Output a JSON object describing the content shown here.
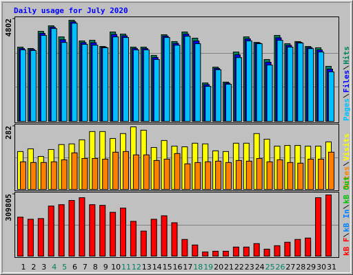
{
  "chart_data": [
    {
      "type": "bar",
      "title": "Daily usage for July 2020",
      "series": [
        {
          "name": "Hits",
          "color": "#00805c",
          "values": [
            3480,
            3415,
            4220,
            4480,
            3960,
            4740,
            3770,
            3800,
            3510,
            4190,
            4090,
            3480,
            3480,
            3090,
            4060,
            3740,
            4190,
            3900,
            1800,
            2540,
            1840,
            3250,
            3960,
            3700,
            2900,
            4030,
            3640,
            3740,
            3510,
            3450,
            2580
          ]
        },
        {
          "name": "Files",
          "color": "#0000ff",
          "values": [
            3415,
            3370,
            4125,
            4415,
            3830,
            4670,
            3690,
            3685,
            3480,
            4075,
            4010,
            3415,
            3415,
            2995,
            3995,
            3655,
            4090,
            3770,
            1720,
            2480,
            1790,
            3120,
            3865,
            3670,
            2770,
            3915,
            3560,
            3705,
            3460,
            3350,
            2450
          ]
        },
        {
          "name": "Pages",
          "color": "#00c0ff",
          "values": [
            3350,
            3320,
            4030,
            4350,
            3700,
            4600,
            3610,
            3570,
            3450,
            3960,
            3930,
            3350,
            3350,
            2900,
            3930,
            3570,
            3990,
            3640,
            1640,
            2420,
            1740,
            2990,
            3770,
            3640,
            2640,
            3800,
            3480,
            3670,
            3410,
            3250,
            2320
          ]
        }
      ],
      "ylim": [
        0,
        4802
      ],
      "yticks": [
        4802
      ],
      "grid": true,
      "grid_divisions": 3
    },
    {
      "type": "bar",
      "series": [
        {
          "name": "Visits",
          "color": "#ffff00",
          "values": [
            169,
            181,
            147,
            178,
            200,
            203,
            221,
            258,
            258,
            227,
            249,
            279,
            264,
            187,
            218,
            193,
            190,
            206,
            203,
            172,
            169,
            206,
            206,
            249,
            224,
            193,
            196,
            196,
            193,
            193,
            212
          ]
        },
        {
          "name": "Sites",
          "color": "#ff8000",
          "values": [
            123,
            120,
            120,
            123,
            132,
            163,
            138,
            138,
            135,
            166,
            169,
            154,
            154,
            129,
            135,
            160,
            114,
            120,
            123,
            126,
            120,
            129,
            126,
            138,
            123,
            132,
            120,
            117,
            135,
            135,
            166
          ]
        }
      ],
      "ylim": [
        0,
        282
      ],
      "yticks": [
        282
      ],
      "grid": true,
      "grid_divisions": 2
    },
    {
      "type": "bar",
      "extra_legend": [
        {
          "name": "kB Out",
          "color": "#00c000"
        },
        {
          "name": "kB In",
          "color": "#0080ff"
        }
      ],
      "series": [
        {
          "name": "kB F",
          "color": "#ff0000",
          "values": [
            194900,
            184500,
            188000,
            250600,
            257600,
            278500,
            292400,
            257600,
            254100,
            219300,
            240200,
            174000,
            125300,
            184500,
            201900,
            167100,
            83500,
            55700,
            20900,
            24400,
            24400,
            45300,
            45300,
            62700,
            34800,
            52200,
            69600,
            83500,
            90500,
            292400,
            306300
          ]
        }
      ],
      "ylim": [
        0,
        309805
      ],
      "yticks": [
        309805
      ],
      "grid": true,
      "grid_divisions": 2,
      "categories": [
        "1",
        "2",
        "3",
        "4",
        "5",
        "6",
        "7",
        "8",
        "9",
        "10",
        "11",
        "12",
        "13",
        "14",
        "15",
        "16",
        "17",
        "18",
        "19",
        "20",
        "21",
        "22",
        "23",
        "24",
        "25",
        "26",
        "27",
        "28",
        "29",
        "30",
        "31"
      ],
      "category_colors": [
        "#000000",
        "#000000",
        "#000000",
        "#00805c",
        "#00805c",
        "#000000",
        "#000000",
        "#000000",
        "#000000",
        "#000000",
        "#00805c",
        "#00805c",
        "#000000",
        "#000000",
        "#000000",
        "#000000",
        "#000000",
        "#00805c",
        "#00805c",
        "#000000",
        "#000000",
        "#000000",
        "#000000",
        "#000000",
        "#00805c",
        "#00805c",
        "#000000",
        "#000000",
        "#000000",
        "#000000",
        "#000000"
      ]
    }
  ]
}
